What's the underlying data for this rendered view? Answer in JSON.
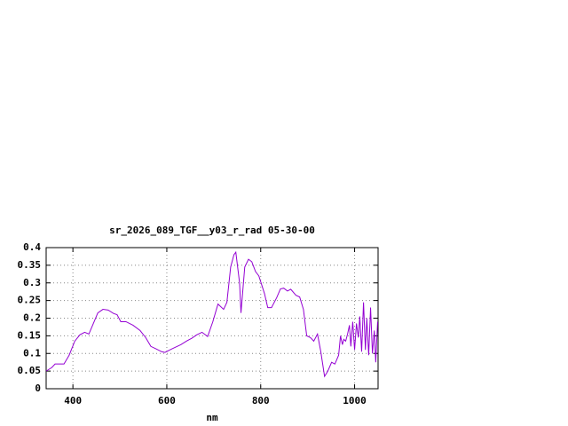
{
  "chart_data": {
    "type": "line",
    "title": "sr_2026_089_TGF__y03_r_rad 05-30-00",
    "x_label": "nm",
    "x": [
      343,
      355,
      362,
      381,
      392,
      404,
      415,
      425,
      434,
      442,
      453,
      464,
      475,
      487,
      494,
      502,
      513,
      528,
      543,
      555,
      566,
      577,
      589,
      596,
      611,
      630,
      642,
      653,
      664,
      675,
      687,
      698,
      709,
      721,
      728,
      736,
      743,
      747,
      755,
      758,
      766,
      774,
      781,
      789,
      796,
      808,
      815,
      823,
      834,
      842,
      849,
      857,
      864,
      875,
      883,
      891,
      898,
      906,
      913,
      921,
      928,
      936,
      943,
      951,
      958,
      966,
      970,
      974,
      977,
      981,
      985,
      989,
      992,
      996,
      1000,
      1004,
      1008,
      1011,
      1015,
      1019,
      1023,
      1026,
      1030,
      1034,
      1038,
      1042,
      1045,
      1049
    ],
    "values": [
      0.05,
      0.06,
      0.07,
      0.07,
      0.095,
      0.135,
      0.153,
      0.16,
      0.155,
      0.18,
      0.215,
      0.225,
      0.223,
      0.213,
      0.21,
      0.19,
      0.19,
      0.18,
      0.165,
      0.145,
      0.12,
      0.113,
      0.105,
      0.103,
      0.113,
      0.125,
      0.135,
      0.143,
      0.153,
      0.16,
      0.148,
      0.19,
      0.24,
      0.225,
      0.245,
      0.345,
      0.38,
      0.387,
      0.3,
      0.215,
      0.345,
      0.367,
      0.36,
      0.332,
      0.32,
      0.27,
      0.23,
      0.23,
      0.258,
      0.283,
      0.285,
      0.277,
      0.282,
      0.265,
      0.26,
      0.225,
      0.15,
      0.145,
      0.135,
      0.155,
      0.105,
      0.035,
      0.05,
      0.075,
      0.07,
      0.095,
      0.15,
      0.125,
      0.14,
      0.135,
      0.155,
      0.18,
      0.12,
      0.19,
      0.11,
      0.185,
      0.145,
      0.205,
      0.105,
      0.245,
      0.11,
      0.2,
      0.095,
      0.23,
      0.1,
      0.165,
      0.075,
      0.19
    ],
    "color": "#9400d3",
    "xlim": [
      343,
      1050
    ],
    "ylim": [
      0,
      0.4
    ],
    "xticks": [
      400,
      600,
      800,
      1000
    ],
    "yticks": [
      0,
      0.05,
      0.1,
      0.15,
      0.2,
      0.25,
      0.3,
      0.35,
      0.4
    ],
    "grid": true
  }
}
